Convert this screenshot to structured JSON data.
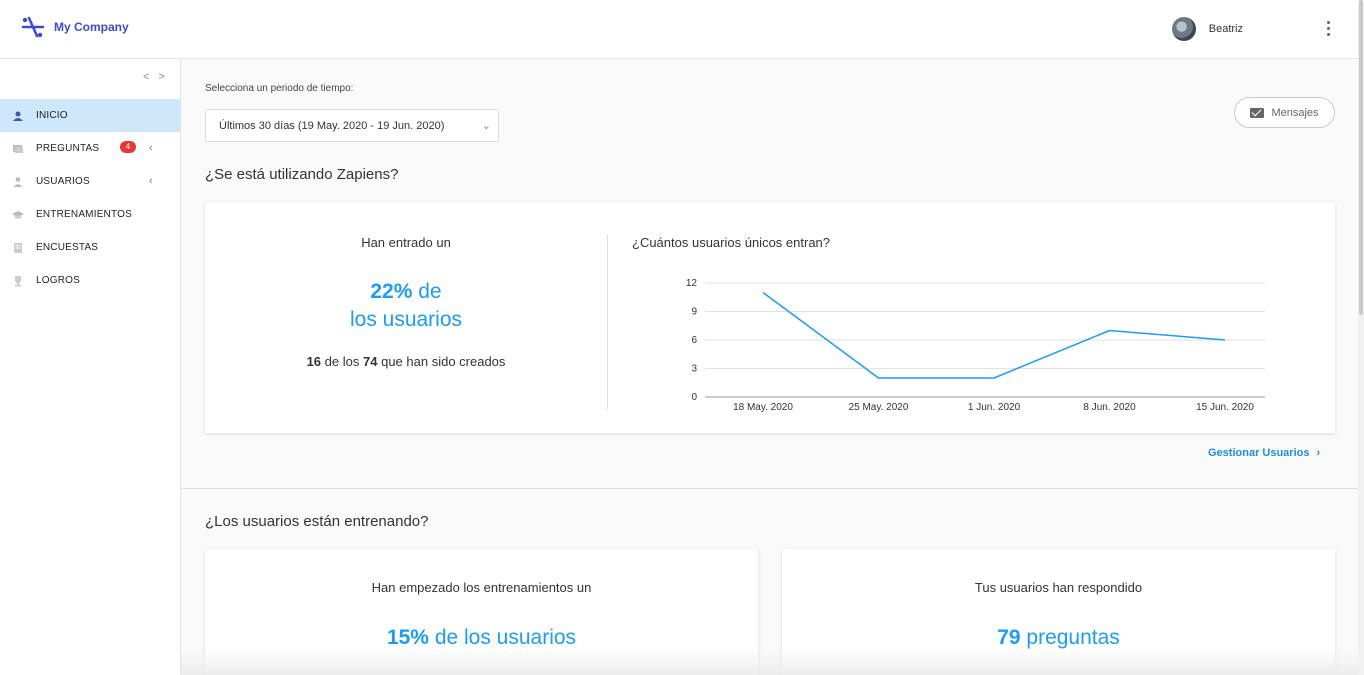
{
  "header": {
    "company": "My Company",
    "user_name": "Beatriz"
  },
  "sidebar": {
    "collapse_icon": "< >",
    "items": [
      {
        "label": "INICIO",
        "icon": "home-user-icon",
        "active": true
      },
      {
        "label": "PREGUNTAS",
        "icon": "questions-icon",
        "badge": "4",
        "expandable": true
      },
      {
        "label": "USUARIOS",
        "icon": "user-icon",
        "expandable": true
      },
      {
        "label": "ENTRENAMIENTOS",
        "icon": "graduation-icon"
      },
      {
        "label": "ENCUESTAS",
        "icon": "survey-icon"
      },
      {
        "label": "LOGROS",
        "icon": "trophy-icon"
      }
    ]
  },
  "filters": {
    "period_label": "Selecciona un periodo de tiempo:",
    "period_value": "Últimos 30 días (19 May. 2020 - 19 Jun. 2020)"
  },
  "messages_button": "Mensajes",
  "section1": {
    "title": "¿Se está utilizando Zapiens?",
    "caption": "Han entrado un",
    "percent": "22%",
    "percent_suffix": "de",
    "percent_line2": "los usuarios",
    "count_entered": "16",
    "count_mid": "de los",
    "count_total": "74",
    "count_suffix": "que han sido creados",
    "chart_title": "¿Cuántos usuarios únicos entran?",
    "manage_link": "Gestionar Usuarios"
  },
  "section2": {
    "title": "¿Los usuarios están entrenando?",
    "left_caption": "Han empezado los entrenamientos un",
    "left_percent": "15%",
    "left_suffix": "de los usuarios",
    "right_caption": "Tus usuarios han respondido",
    "right_count": "79",
    "right_suffix": "preguntas"
  },
  "colors": {
    "accent": "#1e9cf0",
    "active_nav": "#cfe7fa",
    "badge": "#e53935",
    "logo": "#3b4bd1"
  },
  "chart_data": {
    "type": "line",
    "title": "¿Cuántos usuarios únicos entran?",
    "x": [
      "18 May. 2020",
      "25 May. 2020",
      "1 Jun. 2020",
      "8 Jun. 2020",
      "15 Jun. 2020"
    ],
    "series": [
      {
        "values": [
          11,
          2,
          2,
          7,
          6
        ]
      }
    ],
    "yticks": [
      0,
      3,
      6,
      9,
      12
    ],
    "ylim": [
      0,
      12
    ],
    "grid": true,
    "line_color": "#1e9cf0"
  }
}
